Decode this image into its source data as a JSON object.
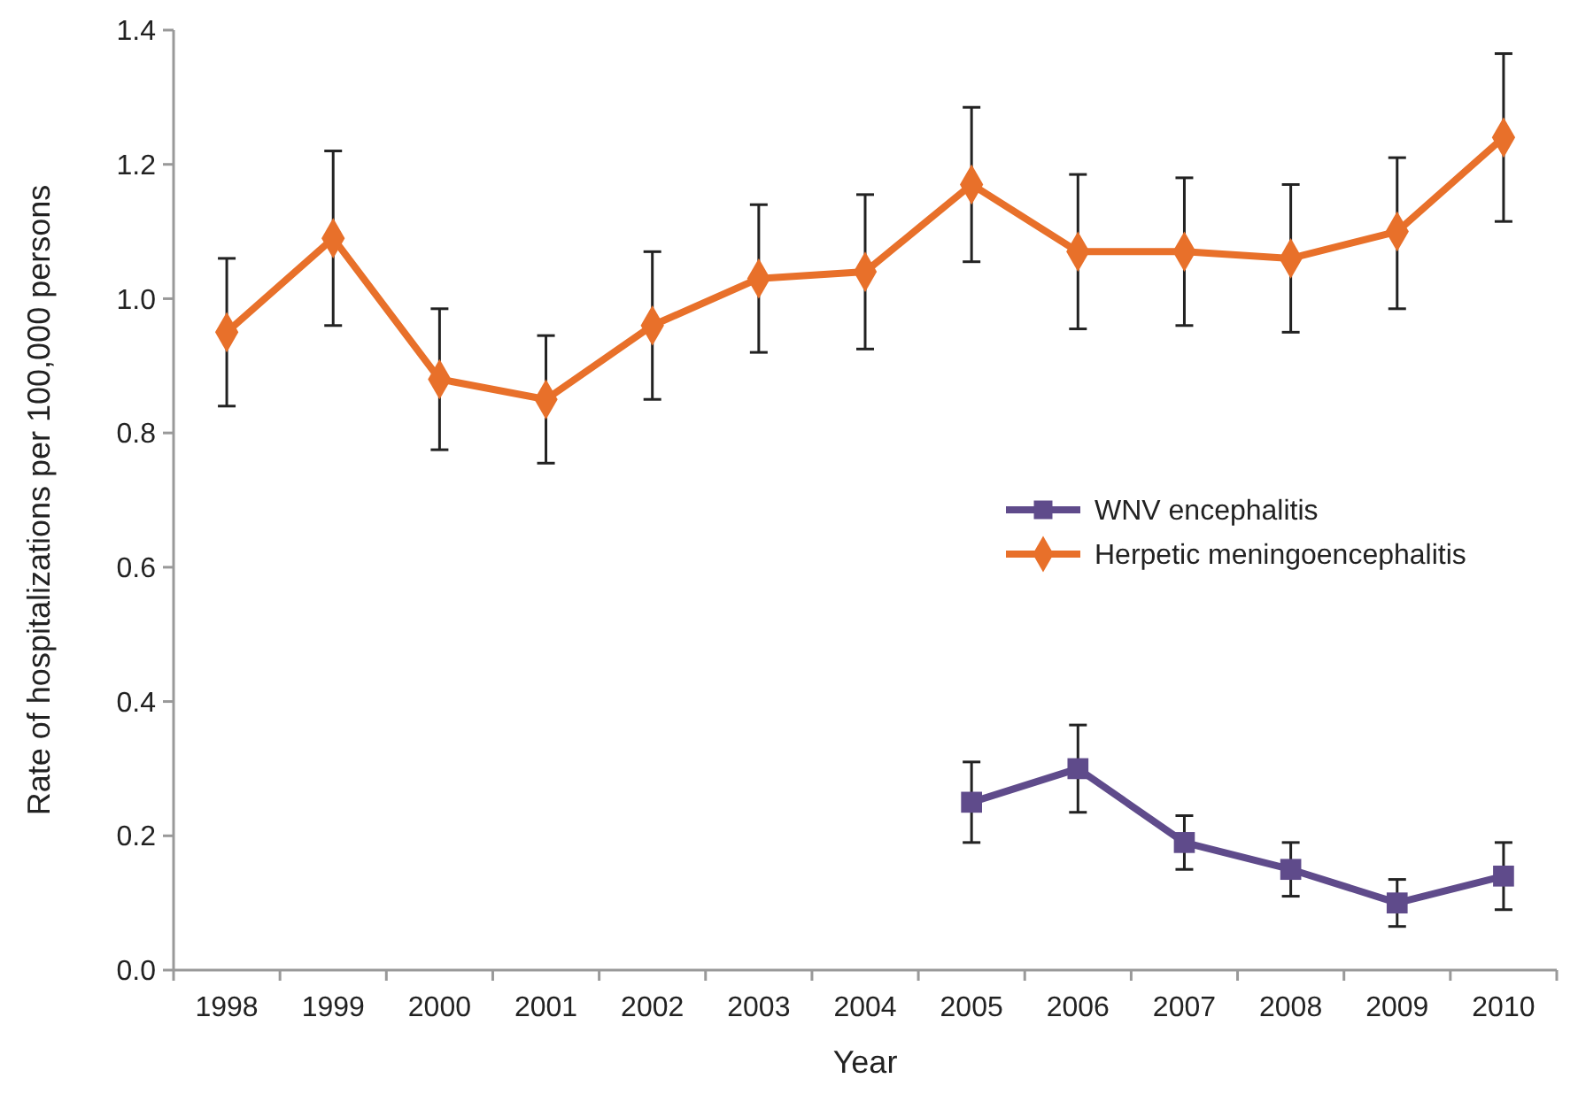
{
  "chart_data": {
    "type": "line",
    "xlabel": "Year",
    "ylabel": "Rate of hospitalizations per 100,000 persons",
    "categories": [
      "1998",
      "1999",
      "2000",
      "2001",
      "2002",
      "2003",
      "2004",
      "2005",
      "2006",
      "2007",
      "2008",
      "2009",
      "2010"
    ],
    "ylim": [
      0,
      1.4
    ],
    "yticks": [
      {
        "value": 0,
        "label": "0.0"
      },
      {
        "value": 0.2,
        "label": "0.2"
      },
      {
        "value": 0.4,
        "label": "0.4"
      },
      {
        "value": 0.6,
        "label": "0.6"
      },
      {
        "value": 0.8,
        "label": "0.8"
      },
      {
        "value": 1,
        "label": "1.0"
      },
      {
        "value": 1.2,
        "label": "1.2"
      },
      {
        "value": 1.4,
        "label": "1.4"
      }
    ],
    "grid": false,
    "legend": "right",
    "line_style": "solid",
    "series": [
      {
        "name": "WNV encephalitis",
        "color": "#5f4b8b",
        "marker": "square",
        "values": [
          null,
          null,
          null,
          null,
          null,
          null,
          null,
          0.25,
          0.3,
          0.19,
          0.15,
          0.1,
          0.14
        ],
        "errors": [
          null,
          null,
          null,
          null,
          null,
          null,
          null,
          [
            0.19,
            0.31
          ],
          [
            0.235,
            0.365
          ],
          [
            0.15,
            0.23
          ],
          [
            0.11,
            0.19
          ],
          [
            0.065,
            0.135
          ],
          [
            0.09,
            0.19
          ]
        ]
      },
      {
        "name": "Herpetic meningoencephalitis",
        "color": "#e8702a",
        "marker": "diamond",
        "values": [
          0.95,
          1.09,
          0.88,
          0.85,
          0.96,
          1.03,
          1.04,
          1.17,
          1.07,
          1.07,
          1.06,
          1.1,
          1.24
        ],
        "errors": [
          [
            0.84,
            1.06
          ],
          [
            0.96,
            1.22
          ],
          [
            0.775,
            0.985
          ],
          [
            0.755,
            0.945
          ],
          [
            0.85,
            1.07
          ],
          [
            0.92,
            1.14
          ],
          [
            0.925,
            1.155
          ],
          [
            1.055,
            1.285
          ],
          [
            0.955,
            1.185
          ],
          [
            0.96,
            1.18
          ],
          [
            0.95,
            1.17
          ],
          [
            0.985,
            1.21
          ],
          [
            1.115,
            1.365
          ]
        ]
      }
    ]
  }
}
